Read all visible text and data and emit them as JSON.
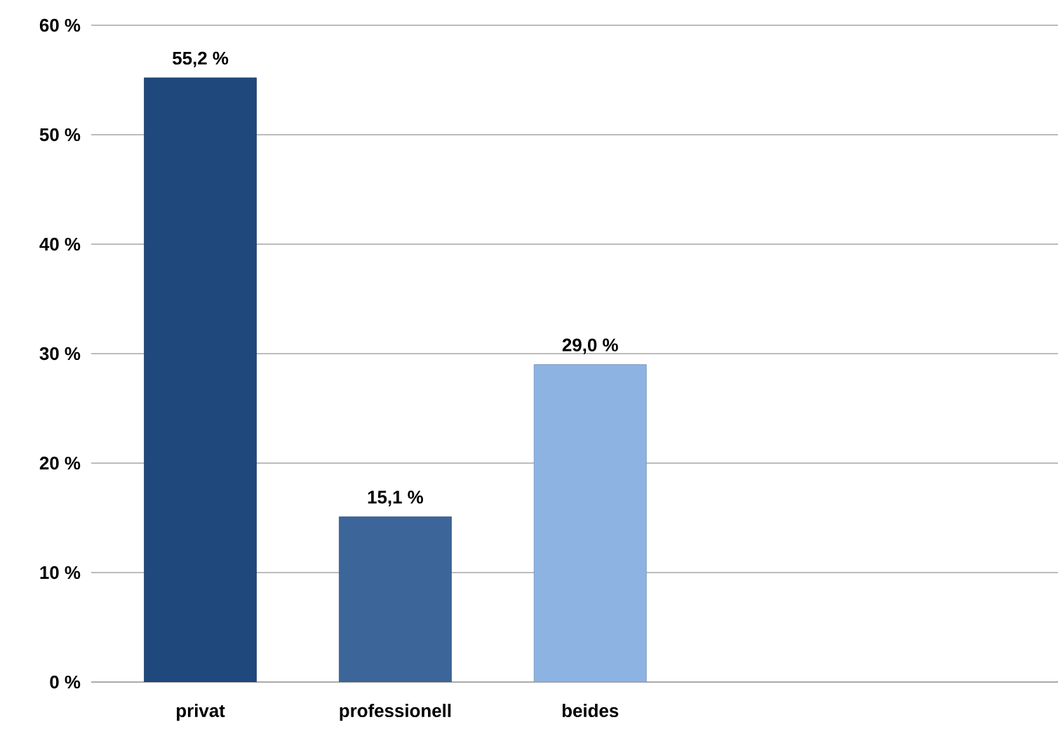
{
  "chart_data": {
    "type": "bar",
    "categories": [
      "privat",
      "professionell",
      "beides",
      null,
      null
    ],
    "values": [
      55.2,
      15.1,
      29.0,
      null,
      null
    ],
    "colors": [
      "#1f497d",
      "#3c6699",
      "#8db3e2",
      "#8db3e2",
      "#8db3e2"
    ],
    "value_labels": [
      "55,2 %",
      "15,1 %",
      "29,0 %",
      null,
      null
    ],
    "ylim": [
      0,
      60
    ],
    "yticks": [
      {
        "value": 0,
        "label": "0 %"
      },
      {
        "value": 10,
        "label": "10 %"
      },
      {
        "value": 20,
        "label": "20 %"
      },
      {
        "value": 30,
        "label": "30 %"
      },
      {
        "value": 40,
        "label": "40 %"
      },
      {
        "value": 50,
        "label": "50 %"
      },
      {
        "value": 60,
        "label": "60 %"
      }
    ],
    "grid": "y"
  }
}
